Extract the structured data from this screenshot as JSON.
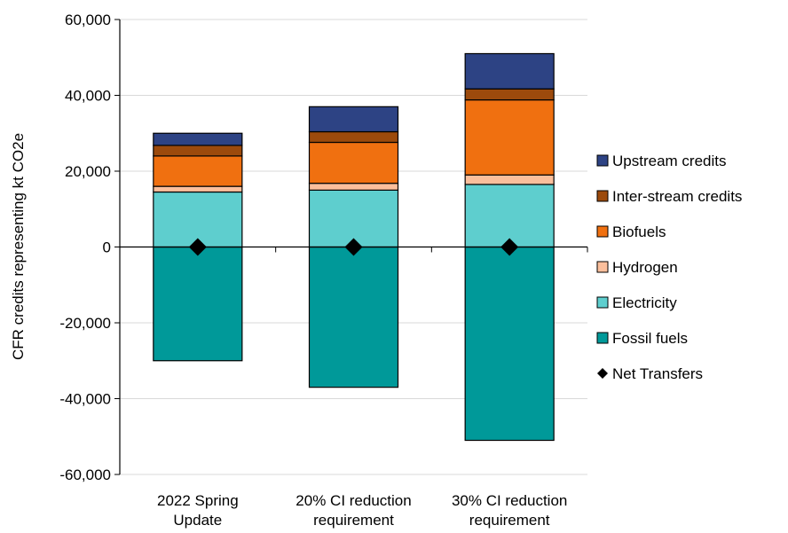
{
  "chart_data": {
    "type": "bar",
    "stacked": true,
    "title": "",
    "xlabel": "",
    "ylabel": "CFR credits representing kt CO2e",
    "ylim": [
      -60000,
      60000
    ],
    "yticks": [
      60000,
      40000,
      20000,
      0,
      -20000,
      -40000,
      -60000
    ],
    "ytick_labels": [
      "60,000",
      "40,000",
      "20,000",
      "0",
      "-20,000",
      "-40,000",
      "-60,000"
    ],
    "grid": true,
    "legend_position": "right",
    "categories": [
      [
        "2022 Spring",
        "Update"
      ],
      [
        "20% CI reduction",
        "requirement"
      ],
      [
        "30% CI reduction",
        "requirement"
      ]
    ],
    "series": [
      {
        "name": "Fossil fuels",
        "color": "#009999",
        "values": [
          -30000,
          -37000,
          -51000
        ]
      },
      {
        "name": "Electricity",
        "color": "#5ecece",
        "values": [
          14500,
          15000,
          16500
        ]
      },
      {
        "name": "Hydrogen",
        "color": "#fbbf9c",
        "values": [
          1500,
          1800,
          2500
        ]
      },
      {
        "name": "Biofuels",
        "color": "#f07010",
        "values": [
          8000,
          10800,
          19800
        ]
      },
      {
        "name": "Inter-stream credits",
        "color": "#9c4a0c",
        "values": [
          2800,
          2800,
          2900
        ]
      },
      {
        "name": "Upstream credits",
        "color": "#2d4384",
        "values": [
          3200,
          6600,
          9300
        ]
      }
    ],
    "net_transfers": {
      "name": "Net Transfers",
      "color": "#000000",
      "values": [
        0,
        0,
        0
      ]
    },
    "legend_order": [
      "Upstream credits",
      "Inter-stream credits",
      "Biofuels",
      "Hydrogen",
      "Electricity",
      "Fossil fuels",
      "Net Transfers"
    ]
  }
}
